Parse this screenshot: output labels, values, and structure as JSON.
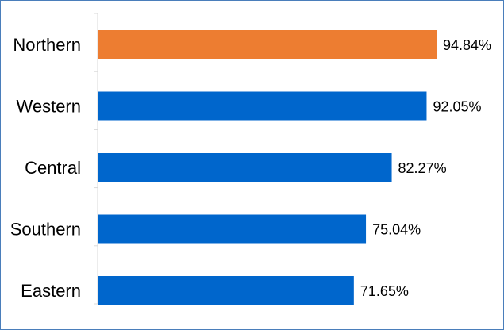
{
  "chart_data": {
    "type": "bar",
    "orientation": "horizontal",
    "categories": [
      "Northern",
      "Western",
      "Central",
      "Southern",
      "Eastern"
    ],
    "values": [
      94.84,
      92.05,
      82.27,
      75.04,
      71.65
    ],
    "value_labels": [
      "94.84%",
      "92.05%",
      "82.27%",
      "75.04%",
      "71.65%"
    ],
    "unit": "%",
    "highlight_category": "Northern",
    "colors": {
      "highlight": "#ed7d31",
      "default": "#0066cc",
      "frame": "#4a7ebb",
      "axis": "#d9d9d9"
    },
    "title": "",
    "xlabel": "",
    "ylabel": "",
    "xlim": [
      0,
      100
    ],
    "grid": false,
    "legend": "none"
  }
}
